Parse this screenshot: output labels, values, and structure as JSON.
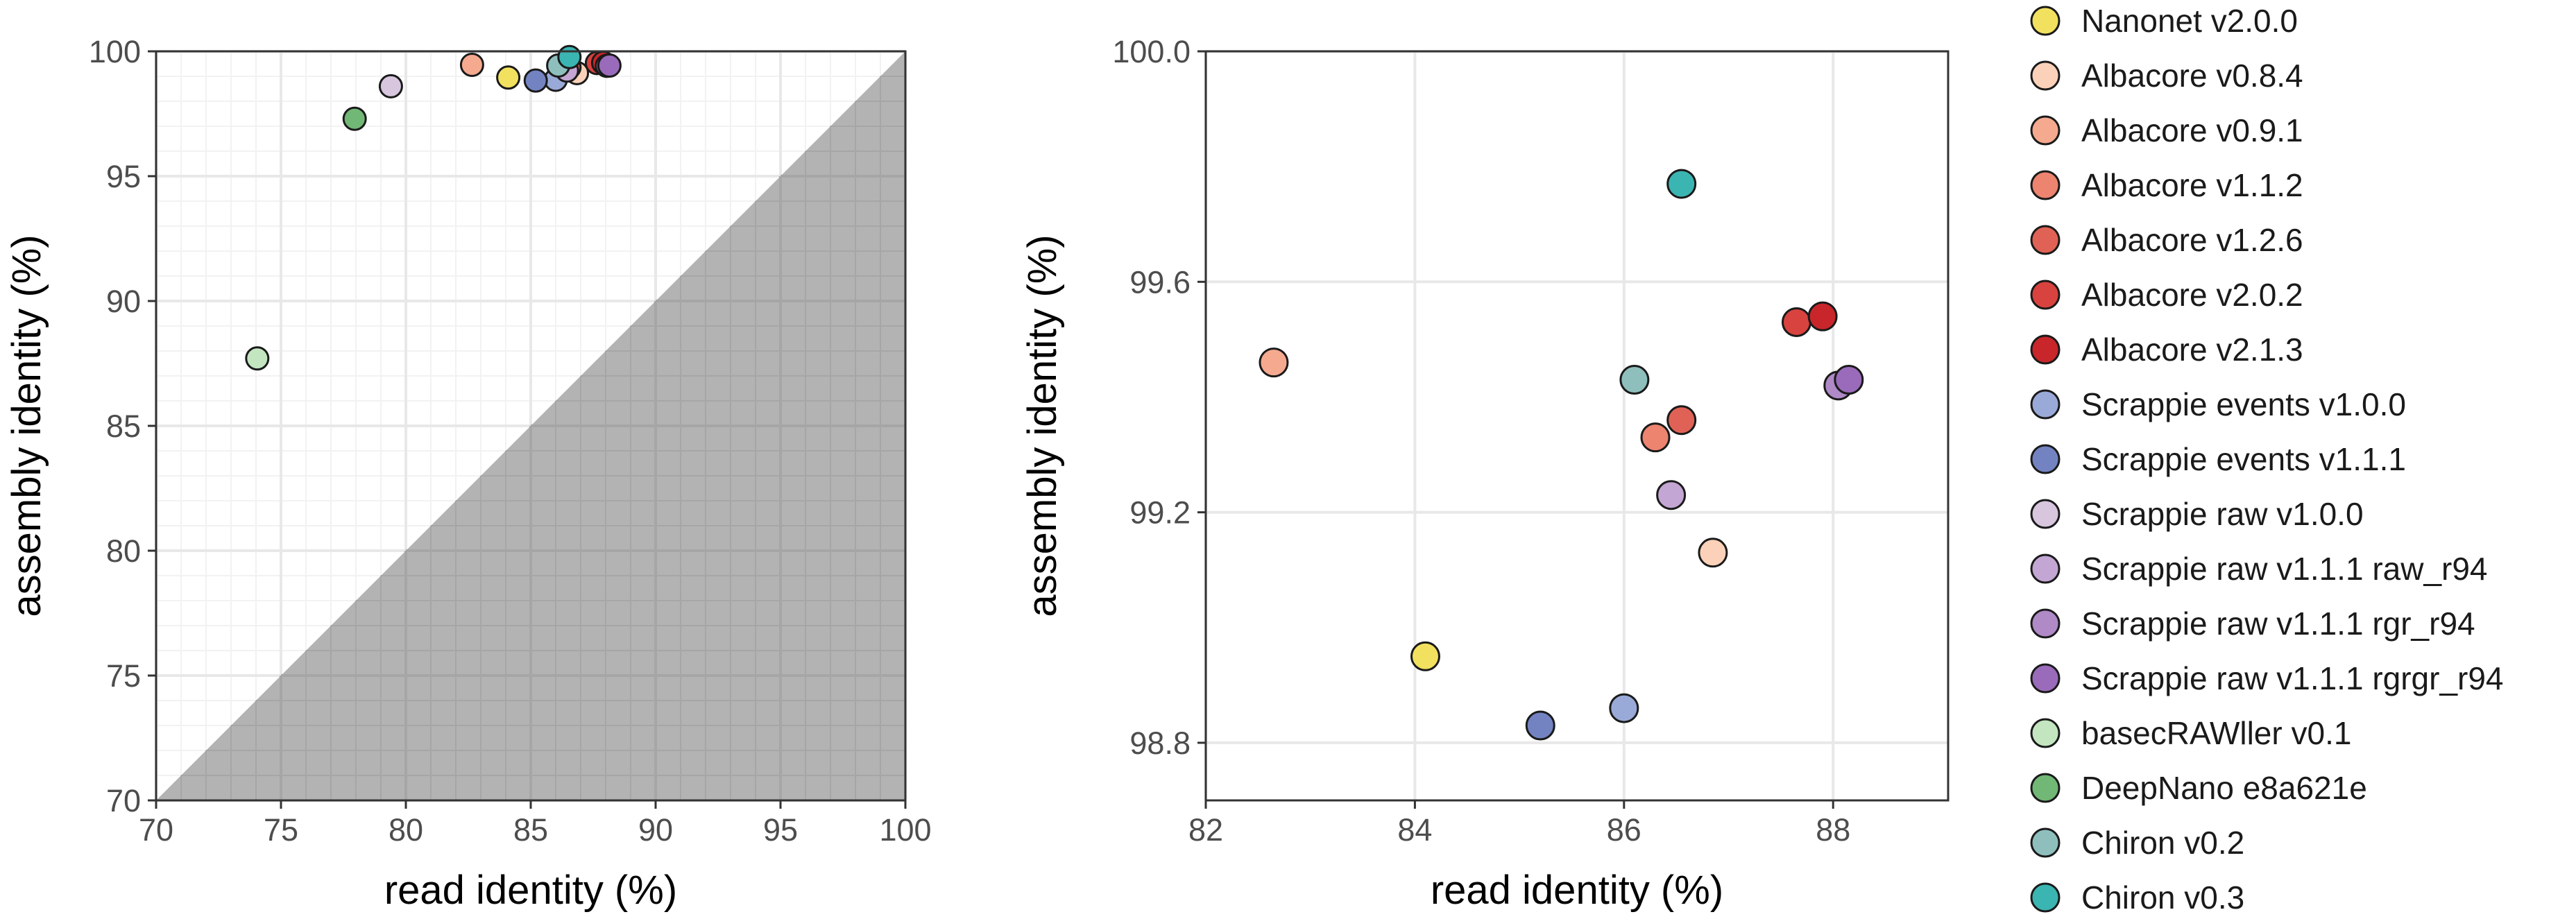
{
  "chart_data": [
    {
      "type": "scatter",
      "xlabel": "read identity (%)",
      "ylabel": "assembly identity (%)",
      "xlim": [
        70,
        100
      ],
      "ylim": [
        70,
        100
      ],
      "x_ticks": [
        "70",
        "75",
        "80",
        "85",
        "90",
        "95",
        "100"
      ],
      "y_ticks": [
        "70",
        "75",
        "80",
        "85",
        "90",
        "95",
        "100"
      ],
      "grid": true,
      "shaded_region": "below y = x diagonal",
      "points": [
        {
          "series": "Nanonet v2.0.0",
          "x": 84.1,
          "y": 98.95
        },
        {
          "series": "Albacore v0.8.4",
          "x": 86.85,
          "y": 99.13
        },
        {
          "series": "Albacore v0.9.1",
          "x": 82.65,
          "y": 99.46
        },
        {
          "series": "Albacore v1.1.2",
          "x": 86.3,
          "y": 99.33
        },
        {
          "series": "Albacore v1.2.6",
          "x": 86.55,
          "y": 99.36
        },
        {
          "series": "Albacore v2.0.2",
          "x": 87.65,
          "y": 99.53
        },
        {
          "series": "Albacore v2.1.3",
          "x": 87.9,
          "y": 99.54
        },
        {
          "series": "Scrappie events v1.0.0",
          "x": 86.0,
          "y": 98.86
        },
        {
          "series": "Scrappie events v1.1.1",
          "x": 85.2,
          "y": 98.83
        },
        {
          "series": "Scrappie raw v1.0.0",
          "x": 79.4,
          "y": 98.6
        },
        {
          "series": "Scrappie raw v1.1.1 raw_r94",
          "x": 86.45,
          "y": 99.23
        },
        {
          "series": "Scrappie raw v1.1.1 rgr_r94",
          "x": 88.05,
          "y": 99.42
        },
        {
          "series": "Scrappie raw v1.1.1 rgrgr_r94",
          "x": 88.15,
          "y": 99.43
        },
        {
          "series": "basecRAWller v0.1",
          "x": 74.05,
          "y": 87.7
        },
        {
          "series": "DeepNano e8a621e",
          "x": 77.95,
          "y": 97.3
        },
        {
          "series": "Chiron v0.2",
          "x": 86.1,
          "y": 99.43
        },
        {
          "series": "Chiron v0.3",
          "x": 86.55,
          "y": 99.77
        }
      ]
    },
    {
      "type": "scatter",
      "xlabel": "read identity (%)",
      "ylabel": "assembly identity (%)",
      "xlim": [
        82,
        89.1
      ],
      "ylim": [
        98.7,
        100.0
      ],
      "x_ticks": [
        "82",
        "84",
        "86",
        "88"
      ],
      "y_ticks": [
        "98.8",
        "99.2",
        "99.6",
        "100.0"
      ],
      "grid": true,
      "points": [
        {
          "series": "Nanonet v2.0.0",
          "x": 84.1,
          "y": 98.95
        },
        {
          "series": "Albacore v0.8.4",
          "x": 86.85,
          "y": 99.13
        },
        {
          "series": "Albacore v0.9.1",
          "x": 82.65,
          "y": 99.46
        },
        {
          "series": "Albacore v1.1.2",
          "x": 86.3,
          "y": 99.33
        },
        {
          "series": "Albacore v1.2.6",
          "x": 86.55,
          "y": 99.36
        },
        {
          "series": "Albacore v2.0.2",
          "x": 87.65,
          "y": 99.53
        },
        {
          "series": "Albacore v2.1.3",
          "x": 87.9,
          "y": 99.54
        },
        {
          "series": "Scrappie events v1.0.0",
          "x": 86.0,
          "y": 98.86
        },
        {
          "series": "Scrappie events v1.1.1",
          "x": 85.2,
          "y": 98.83
        },
        {
          "series": "Scrappie raw v1.1.1 raw_r94",
          "x": 86.45,
          "y": 99.23
        },
        {
          "series": "Scrappie raw v1.1.1 rgr_r94",
          "x": 88.05,
          "y": 99.42
        },
        {
          "series": "Scrappie raw v1.1.1 rgrgr_r94",
          "x": 88.15,
          "y": 99.43
        },
        {
          "series": "Chiron v0.2",
          "x": 86.1,
          "y": 99.43
        },
        {
          "series": "Chiron v0.3",
          "x": 86.55,
          "y": 99.77
        }
      ]
    }
  ],
  "legend": {
    "placement": "right",
    "entries": [
      {
        "label": "Nanonet v2.0.0",
        "color": "#f2e15e"
      },
      {
        "label": "Albacore v0.8.4",
        "color": "#fbd2b9"
      },
      {
        "label": "Albacore v0.9.1",
        "color": "#f5a98f"
      },
      {
        "label": "Albacore v1.1.2",
        "color": "#ec8470"
      },
      {
        "label": "Albacore v1.2.6",
        "color": "#e06256"
      },
      {
        "label": "Albacore v2.0.2",
        "color": "#d8433f"
      },
      {
        "label": "Albacore v2.1.3",
        "color": "#c8262b"
      },
      {
        "label": "Scrappie events v1.0.0",
        "color": "#9aaad8"
      },
      {
        "label": "Scrappie events v1.1.1",
        "color": "#7383c2"
      },
      {
        "label": "Scrappie raw v1.0.0",
        "color": "#d7c6de"
      },
      {
        "label": "Scrappie raw v1.1.1 raw_r94",
        "color": "#c3a6d3"
      },
      {
        "label": "Scrappie raw v1.1.1 rgr_r94",
        "color": "#b089c7"
      },
      {
        "label": "Scrappie raw v1.1.1 rgrgr_r94",
        "color": "#9a6bba"
      },
      {
        "label": "basecRAWller v0.1",
        "color": "#c3e6c1"
      },
      {
        "label": "DeepNano e8a621e",
        "color": "#71b775"
      },
      {
        "label": "Chiron v0.2",
        "color": "#8ebfbd"
      },
      {
        "label": "Chiron v0.3",
        "color": "#3bb5b2"
      }
    ]
  },
  "colors": {
    "panel_border": "#333333",
    "grid_major": "#e8e8e8",
    "grid_minor": "#f2f2f2",
    "shade": "#b3b3b3",
    "shade_grid": "#a6a6a6",
    "point_stroke": "#1a1a1a"
  }
}
